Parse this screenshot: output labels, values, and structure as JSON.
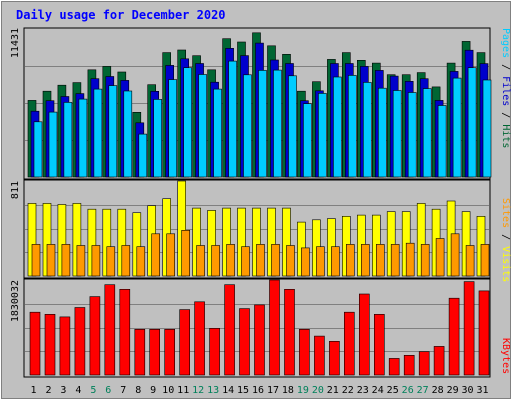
{
  "chart_data": {
    "type": "bar",
    "title": "Daily usage for December 2020",
    "colors": {
      "background": "#c0c0c0",
      "title": "#0000ff",
      "hits": "#006633",
      "files": "#0000cc",
      "pages": "#00ccff",
      "visits": "#ffff00",
      "sites": "#ff9900",
      "kbytes": "#ff0000",
      "weekday_label": "#000000",
      "weekend_label": "#00805a"
    },
    "categories": [
      "1",
      "2",
      "3",
      "4",
      "5",
      "6",
      "7",
      "8",
      "9",
      "10",
      "11",
      "12",
      "13",
      "14",
      "15",
      "16",
      "17",
      "18",
      "19",
      "20",
      "21",
      "22",
      "23",
      "24",
      "25",
      "26",
      "27",
      "28",
      "29",
      "30",
      "31"
    ],
    "weekend_days": [
      "5",
      "6",
      "12",
      "13",
      "19",
      "20",
      "26",
      "27"
    ],
    "top_panel": {
      "ylabel_parts": [
        {
          "text": "Pages",
          "color": "#00ccff"
        },
        {
          "text": " / ",
          "color": "#000000"
        },
        {
          "text": "Files",
          "color": "#0000cc"
        },
        {
          "text": " / ",
          "color": "#000000"
        },
        {
          "text": "Hits",
          "color": "#006633"
        }
      ],
      "max_label": "11431",
      "ylim": [
        0,
        11431
      ],
      "series": [
        {
          "name": "Hits",
          "color": "#006633",
          "values": [
            5920,
            6630,
            7090,
            7290,
            8280,
            8540,
            8110,
            5000,
            7130,
            9610,
            9810,
            9370,
            8280,
            10680,
            10430,
            11140,
            10130,
            9480,
            6630,
            7360,
            9080,
            9610,
            9010,
            8800,
            7900,
            7900,
            8060,
            6960,
            8800,
            10470,
            9610
          ]
        },
        {
          "name": "Files",
          "color": "#0000cc",
          "values": [
            5080,
            5890,
            6220,
            6440,
            7590,
            7760,
            7460,
            4190,
            6620,
            8620,
            9130,
            8770,
            7320,
            9940,
            9380,
            10340,
            9040,
            8770,
            5890,
            6660,
            8770,
            8770,
            8540,
            8230,
            7790,
            7390,
            7590,
            5920,
            8160,
            9790,
            8760
          ]
        },
        {
          "name": "Pages",
          "color": "#00ccff",
          "values": [
            4260,
            5010,
            5760,
            6020,
            6790,
            7060,
            6640,
            3310,
            5990,
            7520,
            8440,
            7920,
            6790,
            8950,
            7890,
            8230,
            8260,
            7820,
            5660,
            6460,
            7720,
            7850,
            7310,
            6860,
            6680,
            6530,
            6830,
            5520,
            7640,
            8440,
            7490
          ]
        }
      ]
    },
    "middle_panel": {
      "ylabel_parts": [
        {
          "text": "Sites",
          "color": "#ff9900"
        },
        {
          "text": " / ",
          "color": "#000000"
        },
        {
          "text": "Visits",
          "color": "#ffff00"
        }
      ],
      "max_label": "811",
      "ylim": [
        0,
        811
      ],
      "series": [
        {
          "name": "Visits",
          "color": "#ffff00",
          "values": [
            620,
            620,
            610,
            620,
            570,
            570,
            570,
            540,
            600,
            660,
            811,
            580,
            560,
            580,
            580,
            580,
            580,
            580,
            460,
            480,
            490,
            510,
            520,
            520,
            550,
            550,
            620,
            570,
            640,
            550,
            510
          ]
        },
        {
          "name": "Sites",
          "color": "#ff9900",
          "values": [
            270,
            270,
            270,
            260,
            260,
            250,
            260,
            250,
            360,
            360,
            390,
            260,
            260,
            270,
            250,
            270,
            270,
            260,
            240,
            250,
            250,
            270,
            270,
            270,
            270,
            280,
            270,
            320,
            360,
            260,
            270
          ]
        }
      ]
    },
    "bottom_panel": {
      "ylabel_parts": [
        {
          "text": "KBytes",
          "color": "#ff0000"
        }
      ],
      "max_label": "1830032",
      "ylim": [
        0,
        1830032
      ],
      "series": [
        {
          "name": "KBytes",
          "color": "#ff0000",
          "values": [
            1210000,
            1170000,
            1120000,
            1300000,
            1510000,
            1740000,
            1650000,
            880000,
            880000,
            880000,
            1260000,
            1410000,
            900000,
            1740000,
            1280000,
            1350000,
            1830032,
            1650000,
            880000,
            750000,
            650000,
            1210000,
            1560000,
            1170000,
            320000,
            380000,
            450000,
            550000,
            1480000,
            1800000,
            1620000
          ]
        }
      ]
    }
  }
}
